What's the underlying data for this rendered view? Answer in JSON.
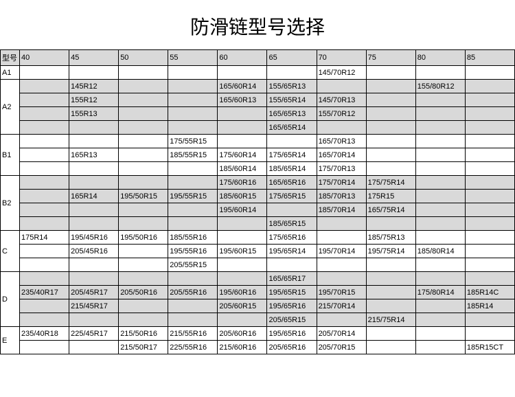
{
  "title": "防滑链型号选择",
  "columns": [
    "型号",
    "40",
    "45",
    "50",
    "55",
    "60",
    "65",
    "70",
    "75",
    "80",
    "85"
  ],
  "groups": [
    {
      "label": "A1",
      "shaded": false,
      "rows": [
        [
          "",
          "",
          "",
          "",
          "",
          "",
          "145/70R12",
          "",
          "",
          ""
        ]
      ]
    },
    {
      "label": "A2",
      "shaded": true,
      "rows": [
        [
          "",
          "145R12",
          "",
          "",
          "165/60R14",
          "155/65R13",
          "",
          "",
          "155/80R12",
          ""
        ],
        [
          "",
          "155R12",
          "",
          "",
          "165/60R13",
          "155/65R14",
          "145/70R13",
          "",
          "",
          ""
        ],
        [
          "",
          "155R13",
          "",
          "",
          "",
          "165/65R13",
          "155/70R12",
          "",
          "",
          ""
        ],
        [
          "",
          "",
          "",
          "",
          "",
          "165/65R14",
          "",
          "",
          "",
          ""
        ]
      ]
    },
    {
      "label": "B1",
      "shaded": false,
      "rows": [
        [
          "",
          "",
          "",
          "175/55R15",
          "",
          "",
          "165/70R13",
          "",
          "",
          ""
        ],
        [
          "",
          "165R13",
          "",
          "185/55R15",
          "175/60R14",
          "175/65R14",
          "165/70R14",
          "",
          "",
          ""
        ],
        [
          "",
          "",
          "",
          "",
          "185/60R14",
          "185/65R14",
          "175/70R13",
          "",
          "",
          ""
        ]
      ]
    },
    {
      "label": "B2",
      "shaded": true,
      "rows": [
        [
          "",
          "",
          "",
          "",
          "175/60R16",
          "165/65R16",
          "175/70R14",
          "175/75R14",
          "",
          ""
        ],
        [
          "",
          "165R14",
          "195/50R15",
          "195/55R15",
          "185/60R15",
          "175/65R15",
          "185/70R13",
          "175R15",
          "",
          ""
        ],
        [
          "",
          "",
          "",
          "",
          "195/60R14",
          "",
          "185/70R14",
          "165/75R14",
          "",
          ""
        ],
        [
          "",
          "",
          "",
          "",
          "",
          "185/65R15",
          "",
          "",
          "",
          ""
        ]
      ]
    },
    {
      "label": "C",
      "shaded": false,
      "rows": [
        [
          "175R14",
          "195/45R16",
          "195/50R16",
          "185/55R16",
          "",
          "175/65R16",
          "",
          "185/75R13",
          "",
          ""
        ],
        [
          "",
          "205/45R16",
          "",
          "195/55R16",
          "195/60R15",
          "195/65R14",
          "195/70R14",
          "195/75R14",
          "185/80R14",
          ""
        ],
        [
          "",
          "",
          "",
          "205/55R15",
          "",
          "",
          "",
          "",
          "",
          ""
        ]
      ]
    },
    {
      "label": "D",
      "shaded": true,
      "rows": [
        [
          "",
          "",
          "",
          "",
          "",
          "165/65R17",
          "",
          "",
          "",
          ""
        ],
        [
          "235/40R17",
          "205/45R17",
          "205/50R16",
          "205/55R16",
          "195/60R16",
          "195/65R15",
          "195/70R15",
          "",
          "175/80R14",
          "185R14C"
        ],
        [
          "",
          "215/45R17",
          "",
          "",
          "205/60R15",
          "195/65R16",
          "215/70R14",
          "",
          "",
          "185R14"
        ],
        [
          "",
          "",
          "",
          "",
          "",
          "205/65R15",
          "",
          "215/75R14",
          "",
          ""
        ]
      ]
    },
    {
      "label": "E",
      "shaded": false,
      "rows": [
        [
          "235/40R18",
          "225/45R17",
          "215/50R16",
          "215/55R16",
          "205/60R16",
          "195/65R16",
          "205/70R14",
          "",
          "",
          ""
        ],
        [
          "",
          "",
          "215/50R17",
          "225/55R16",
          "215/60R16",
          "205/65R16",
          "205/70R15",
          "",
          "",
          "185R15CT"
        ]
      ]
    }
  ],
  "style": {
    "background": "#ffffff",
    "shaded_bg": "#d9d9d9",
    "border_color": "#000000",
    "title_fontsize": 28,
    "cell_fontsize": 11
  }
}
